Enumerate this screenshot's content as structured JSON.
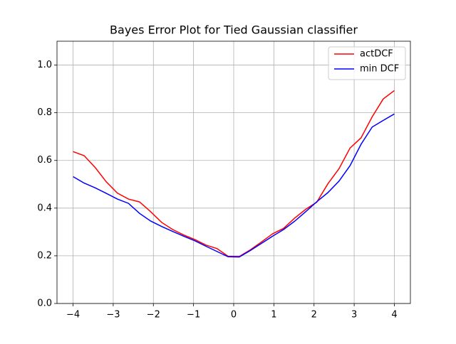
{
  "chart_data": {
    "type": "line",
    "title": "Bayes Error Plot for Tied Gaussian classifier",
    "x": [
      -4,
      -3.724,
      -3.448,
      -3.172,
      -2.897,
      -2.621,
      -2.345,
      -2.069,
      -1.793,
      -1.517,
      -1.241,
      -0.966,
      -0.69,
      -0.414,
      -0.138,
      0.138,
      0.414,
      0.69,
      0.966,
      1.241,
      1.517,
      1.793,
      2.069,
      2.345,
      2.621,
      2.897,
      3.172,
      3.448,
      3.724,
      4
    ],
    "series": [
      {
        "name": "actDCF",
        "color": "#ff0000",
        "values": [
          0.637,
          0.62,
          0.57,
          0.51,
          0.463,
          0.438,
          0.426,
          0.385,
          0.34,
          0.31,
          0.287,
          0.268,
          0.245,
          0.23,
          0.198,
          0.197,
          0.225,
          0.258,
          0.292,
          0.315,
          0.358,
          0.395,
          0.425,
          0.502,
          0.565,
          0.652,
          0.695,
          0.783,
          0.858,
          0.893
        ]
      },
      {
        "name": "min DCF",
        "color": "#0000ff",
        "values": [
          0.532,
          0.505,
          0.485,
          0.462,
          0.438,
          0.42,
          0.378,
          0.346,
          0.323,
          0.302,
          0.282,
          0.263,
          0.24,
          0.218,
          0.196,
          0.195,
          0.222,
          0.252,
          0.282,
          0.31,
          0.345,
          0.385,
          0.427,
          0.465,
          0.513,
          0.578,
          0.668,
          0.74,
          0.768,
          0.795
        ]
      }
    ],
    "xlim": [
      -4.4,
      4.4
    ],
    "xticks": [
      {
        "value": -4,
        "label": "−4"
      },
      {
        "value": -3,
        "label": "−3"
      },
      {
        "value": -2,
        "label": "−2"
      },
      {
        "value": -1,
        "label": "−1"
      },
      0,
      1,
      2,
      3,
      4
    ],
    "ylim": [
      0,
      1.1
    ],
    "yticks": [
      {
        "value": 0,
        "label": "0.0"
      },
      0.2,
      0.4,
      0.6,
      0.8,
      {
        "value": 1,
        "label": "1.0"
      }
    ],
    "grid": true,
    "legend": "upper right"
  }
}
